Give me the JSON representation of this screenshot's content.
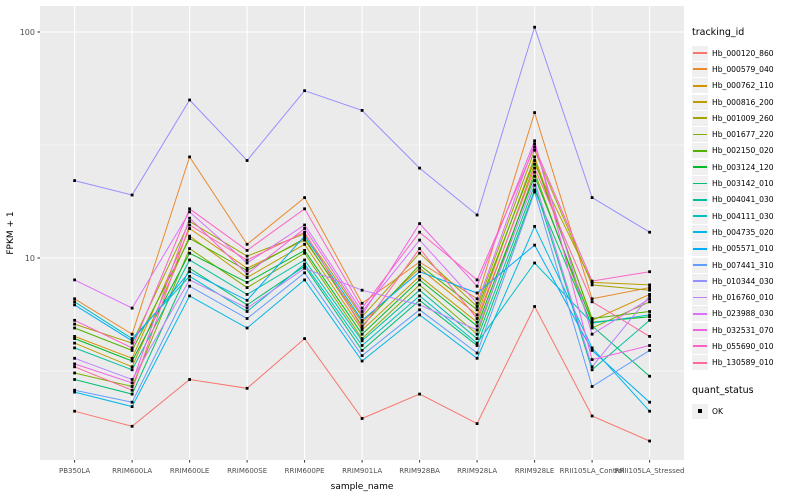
{
  "figure": {
    "panel_bg": "#EBEBEB",
    "grid_color": "#FFFFFF",
    "tick_color": "#333333",
    "tick_label_color": "#4D4D4D",
    "title_color": "#000000",
    "point_color": "#000000"
  },
  "chart_data": {
    "type": "line",
    "title": "",
    "xlabel": "sample_name",
    "ylabel": "FPKM + 1",
    "y_scale": "log10",
    "grid": true,
    "legend_position": "right",
    "point_marker": "black-square",
    "y_major_ticks": [
      {
        "label": "10",
        "value": 10
      },
      {
        "label": "100",
        "value": 100
      }
    ],
    "y_minor_ticks": [
      3.162,
      31.62
    ],
    "y_domain": [
      1.28,
      130
    ],
    "categories": [
      "PB350LA",
      "RRIM600LA",
      "RRIM600LE",
      "RRIM600SE",
      "RRIM600PE",
      "RRIM901LA",
      "RRIM928BA",
      "RRIM928LA",
      "RRIM928LE",
      "RRII105LA_Control",
      "RRII105LA_Stressed"
    ],
    "series": [
      {
        "name": "Hb_000120_860",
        "color": "#F8766D",
        "values": [
          2.1,
          1.8,
          2.9,
          2.65,
          4.4,
          1.95,
          2.5,
          1.85,
          6.1,
          2.0,
          1.55
        ]
      },
      {
        "name": "Hb_000579_040",
        "color": "#E98A2F",
        "values": [
          6.6,
          4.6,
          28,
          11.5,
          18.5,
          6.3,
          9.6,
          6.6,
          44,
          6.6,
          7.4
        ]
      },
      {
        "name": "Hb_000762_110",
        "color": "#D39200",
        "values": [
          4.5,
          3.6,
          13.5,
          9.0,
          12.0,
          5.2,
          9.0,
          5.6,
          28,
          5.3,
          6.9
        ]
      },
      {
        "name": "Hb_000816_200",
        "color": "#BC9D00",
        "values": [
          4.2,
          3.3,
          12.5,
          8.2,
          11.5,
          4.8,
          8.3,
          5.2,
          26,
          7.8,
          7.6
        ]
      },
      {
        "name": "Hb_001009_260",
        "color": "#A2A400",
        "values": [
          5.1,
          4.2,
          14.5,
          10.2,
          12.8,
          5.5,
          10.5,
          6.1,
          30,
          7.6,
          7.2
        ]
      },
      {
        "name": "Hb_001677_220",
        "color": "#81AD00",
        "values": [
          3.1,
          2.7,
          11.0,
          7.4,
          10.5,
          4.4,
          7.6,
          4.6,
          24,
          4.9,
          6.4
        ]
      },
      {
        "name": "Hb_002150_020",
        "color": "#4FB300",
        "values": [
          4.9,
          3.9,
          12.2,
          8.8,
          12.2,
          5.0,
          9.3,
          5.9,
          27,
          5.4,
          5.8
        ]
      },
      {
        "name": "Hb_003124_120",
        "color": "#00B92A",
        "values": [
          4.4,
          3.5,
          10.5,
          7.8,
          10.8,
          4.6,
          8.0,
          5.0,
          23,
          5.2,
          5.5
        ]
      },
      {
        "name": "Hb_003142_010",
        "color": "#00BE70",
        "values": [
          2.9,
          2.5,
          9.0,
          6.2,
          9.2,
          3.9,
          6.5,
          4.1,
          20,
          5.0,
          3.0
        ]
      },
      {
        "name": "Hb_004041_030",
        "color": "#00C19C",
        "values": [
          4.0,
          3.2,
          9.8,
          6.9,
          9.8,
          4.3,
          7.2,
          4.4,
          21,
          3.2,
          5.3
        ]
      },
      {
        "name": "Hb_004111_030",
        "color": "#00BFC4",
        "values": [
          6.4,
          4.4,
          8.3,
          5.8,
          9.4,
          4.1,
          6.8,
          4.2,
          9.5,
          5.15,
          5.6
        ]
      },
      {
        "name": "Hb_004735_020",
        "color": "#00B8E5",
        "values": [
          2.55,
          2.2,
          6.8,
          4.9,
          8.0,
          3.5,
          5.6,
          3.6,
          13.8,
          4.0,
          2.1
        ]
      },
      {
        "name": "Hb_005571_010",
        "color": "#00ACFC",
        "values": [
          6.2,
          4.3,
          8.7,
          6.5,
          12.5,
          5.3,
          8.7,
          7.0,
          11.4,
          3.9,
          2.3
        ]
      },
      {
        "name": "Hb_007441_310",
        "color": "#619CFF",
        "values": [
          2.6,
          2.3,
          7.5,
          5.4,
          8.6,
          3.7,
          5.9,
          3.8,
          19.6,
          2.7,
          3.9
        ]
      },
      {
        "name": "Hb_010344_030",
        "color": "#9590FF",
        "values": [
          22,
          19,
          50,
          27,
          55,
          45,
          25,
          15.5,
          105,
          18.5,
          13
        ]
      },
      {
        "name": "Hb_016760_010",
        "color": "#BC81FF",
        "values": [
          3.6,
          2.9,
          8.0,
          6.0,
          9.0,
          7.2,
          6.2,
          4.8,
          22,
          3.3,
          6.8
        ]
      },
      {
        "name": "Hb_023988_030",
        "color": "#DA72FB",
        "values": [
          8.0,
          6.0,
          16,
          9.5,
          14,
          5.8,
          12.0,
          6.3,
          32,
          4.6,
          6.6
        ]
      },
      {
        "name": "Hb_032531_070",
        "color": "#F064E2",
        "values": [
          3.4,
          2.8,
          15,
          8.5,
          13.5,
          5.6,
          14.2,
          7.5,
          33,
          3.55,
          4.1
        ]
      },
      {
        "name": "Hb_055690_010",
        "color": "#FF61C7",
        "values": [
          5.3,
          4.0,
          16.5,
          10.8,
          16.5,
          6.0,
          13.0,
          8.0,
          31,
          7.9,
          8.7
        ]
      },
      {
        "name": "Hb_130589_010",
        "color": "#FF689E",
        "values": [
          3.3,
          2.6,
          14,
          9.8,
          13,
          4.9,
          11.0,
          5.4,
          25,
          6.4,
          4.5
        ]
      }
    ]
  },
  "legend": {
    "tracking_title": "tracking_id",
    "quant_title": "quant_status",
    "quant_items": [
      {
        "label": "OK",
        "marker": "black-square"
      }
    ],
    "key_bg": "#F0F0F0"
  }
}
